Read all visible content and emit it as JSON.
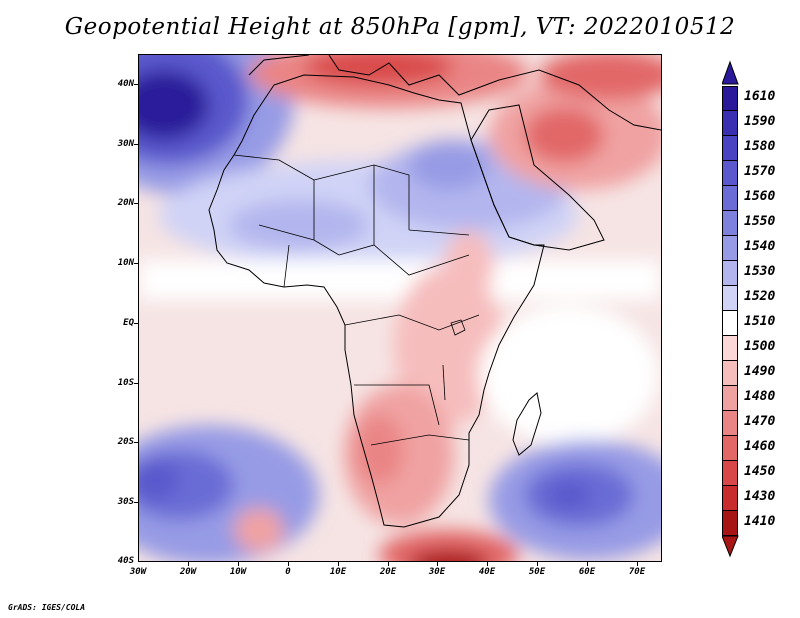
{
  "title": "Geopotential Height at 850hPa [gpm], VT: 2022010512",
  "credit": "GrADS: IGES/COLA",
  "map": {
    "projection": "lat-lon",
    "lon_range": [
      -30,
      75
    ],
    "lat_range": [
      -40,
      45
    ],
    "lat_labels": [
      "40N",
      "30N",
      "20N",
      "10N",
      "EQ",
      "10S",
      "20S",
      "30S",
      "40S"
    ],
    "lat_values": [
      40,
      30,
      20,
      10,
      0,
      -10,
      -20,
      -30,
      -40
    ],
    "lon_labels": [
      "30W",
      "20W",
      "10W",
      "0",
      "10E",
      "20E",
      "30E",
      "40E",
      "50E",
      "60E",
      "70E"
    ],
    "lon_values": [
      -30,
      -20,
      -10,
      0,
      10,
      20,
      30,
      40,
      50,
      60,
      70
    ]
  },
  "colorbar": {
    "labels": [
      "1610",
      "1590",
      "1580",
      "1570",
      "1560",
      "1550",
      "1540",
      "1530",
      "1520",
      "1510",
      "1500",
      "1490",
      "1480",
      "1470",
      "1460",
      "1450",
      "1430",
      "1410"
    ],
    "colors": [
      "#2a1a9a",
      "#3a2fb0",
      "#4b44c2",
      "#5a58cc",
      "#6b6cd5",
      "#7f82dd",
      "#979be5",
      "#b3b6ee",
      "#d0d3f6",
      "#ffffff",
      "#fbd8d8",
      "#f6bdbd",
      "#f0a2a2",
      "#ea8585",
      "#e26767",
      "#d94848",
      "#c92c2c",
      "#a81515"
    ]
  }
}
